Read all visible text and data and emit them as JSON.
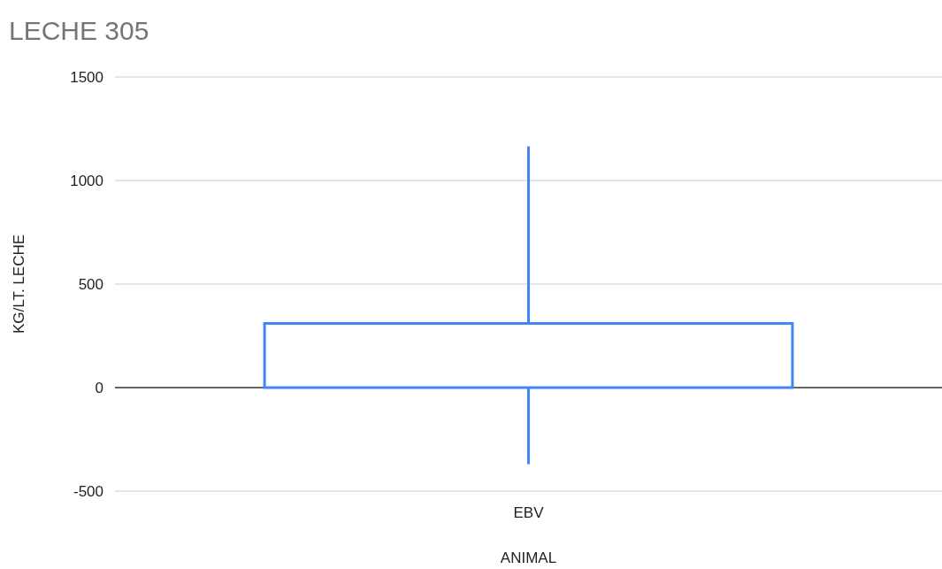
{
  "chart_data": {
    "type": "candlestick",
    "title": "LECHE 305",
    "xlabel": "ANIMAL",
    "ylabel": "KG/LT. LECHE",
    "categories": [
      "EBV"
    ],
    "ohlc": [
      [
        0,
        1165,
        -370,
        310
      ]
    ],
    "color": "#4285f4",
    "ylim": [
      -500,
      1500
    ],
    "yticks": [
      -500,
      0,
      500,
      1000,
      1500
    ],
    "grid": "y"
  }
}
